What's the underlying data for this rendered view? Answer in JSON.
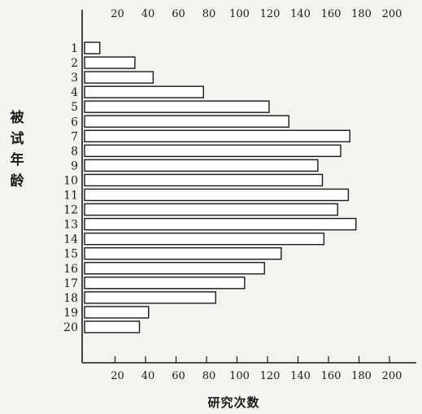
{
  "chart_data": {
    "type": "bar",
    "orientation": "horizontal",
    "ylabel": "被试年龄",
    "xlabel": "研究次数",
    "xlim": [
      0,
      210
    ],
    "xticks": [
      20,
      40,
      60,
      80,
      100,
      120,
      140,
      160,
      180,
      200
    ],
    "tick_labels_top": [
      "20",
      "40",
      "60",
      "80",
      "100",
      "120",
      "140",
      "160",
      "180",
      "200"
    ],
    "tick_labels_bottom": [
      "20",
      "40",
      "60",
      "80",
      "100",
      "120",
      "140",
      "160",
      "180",
      "200"
    ],
    "categories": [
      "1",
      "2",
      "3",
      "4",
      "5",
      "6",
      "7",
      "8",
      "9",
      "10",
      "11",
      "12",
      "13",
      "14",
      "15",
      "16",
      "17",
      "18",
      "19",
      "20"
    ],
    "values": [
      10,
      33,
      45,
      78,
      121,
      134,
      174,
      168,
      153,
      156,
      173,
      166,
      178,
      157,
      129,
      118,
      105,
      86,
      42,
      36
    ],
    "grid": false,
    "legend": "none"
  }
}
